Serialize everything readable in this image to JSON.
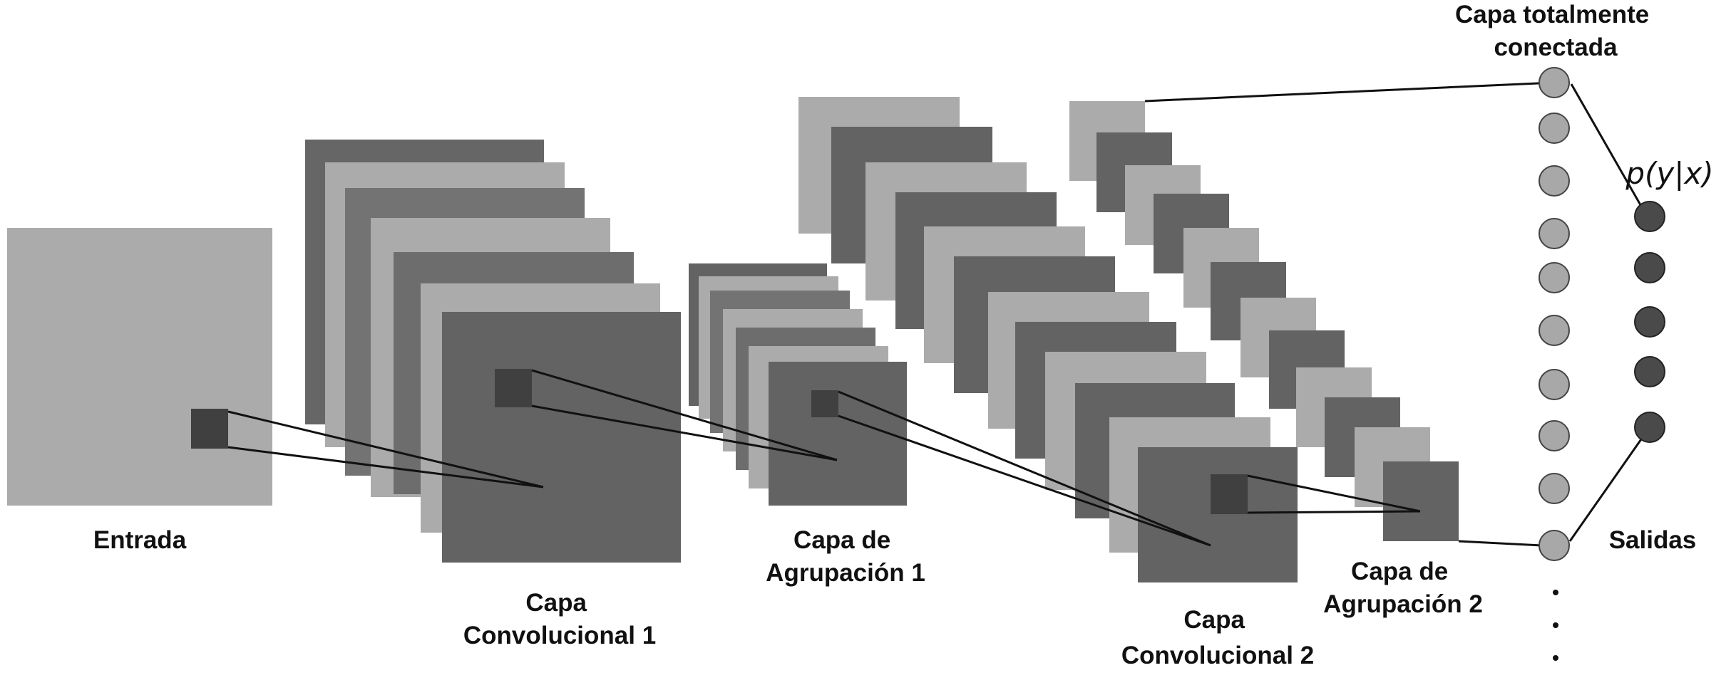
{
  "labels": {
    "input": "Entrada",
    "conv1": [
      "Capa",
      "Convolucional 1"
    ],
    "pool1": [
      "Capa de",
      "Agrupación 1"
    ],
    "conv2": [
      "Capa",
      "Convolucional 2"
    ],
    "pool2": [
      "Capa de",
      "Agrupación 2"
    ],
    "fc": [
      "Capa totalmente",
      "conectada"
    ],
    "outputs": "Salidas",
    "prob": "p(y|x)"
  },
  "colors": {
    "light": "#ababab",
    "mid": "#737373",
    "dark": "#636363",
    "kernel": "#404040",
    "fc_node": "#a8a8a8",
    "out_node": "#4a4a4a",
    "line": "#111111"
  },
  "fc_node_count": 10,
  "output_node_count": 5
}
